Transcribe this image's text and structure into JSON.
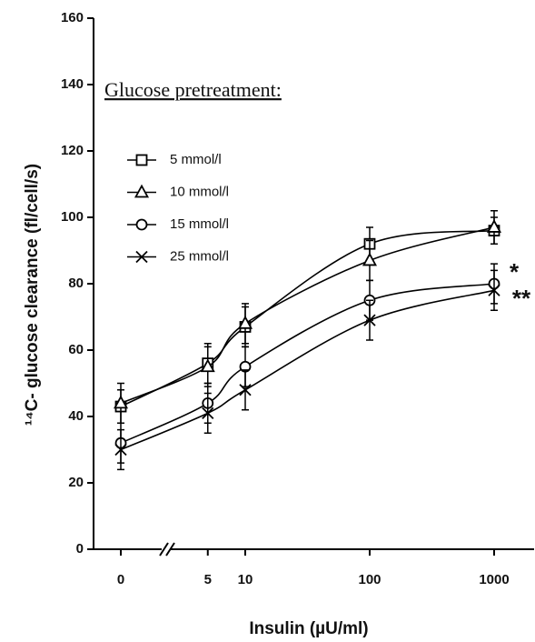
{
  "chart_data": {
    "type": "line",
    "legend_title": "Glucose pretreatment:",
    "y_label": "¹⁴C- glucose clearance (fl/cell/s)",
    "x_label": "Insulin (µU/ml)",
    "x": [
      0,
      5,
      10,
      100,
      1000
    ],
    "xticks": [
      0,
      5,
      10,
      100,
      1000
    ],
    "x_scale": "log",
    "x_break": true,
    "ylim": [
      0,
      160
    ],
    "yticks": [
      0,
      20,
      40,
      60,
      80,
      100,
      120,
      140,
      160
    ],
    "series": [
      {
        "name": "5 mmol/l",
        "marker": "square",
        "color": "#000000",
        "values": [
          43,
          56,
          67,
          92,
          96
        ],
        "errors": [
          5,
          6,
          6,
          5,
          4
        ]
      },
      {
        "name": "10 mmol/l",
        "marker": "triangle",
        "color": "#000000",
        "values": [
          44,
          55,
          68,
          87,
          97
        ],
        "errors": [
          6,
          6,
          6,
          6,
          5
        ]
      },
      {
        "name": "15 mmol/l",
        "marker": "circle",
        "color": "#000000",
        "values": [
          32,
          44,
          55,
          75,
          80
        ],
        "errors": [
          6,
          6,
          6,
          6,
          6
        ]
      },
      {
        "name": "25 mmol/l",
        "marker": "x",
        "color": "#000000",
        "values": [
          30,
          41,
          48,
          69,
          78
        ],
        "errors": [
          6,
          6,
          6,
          6,
          6
        ]
      }
    ],
    "annotations": [
      {
        "text": "*"
      },
      {
        "text": "**"
      }
    ]
  }
}
